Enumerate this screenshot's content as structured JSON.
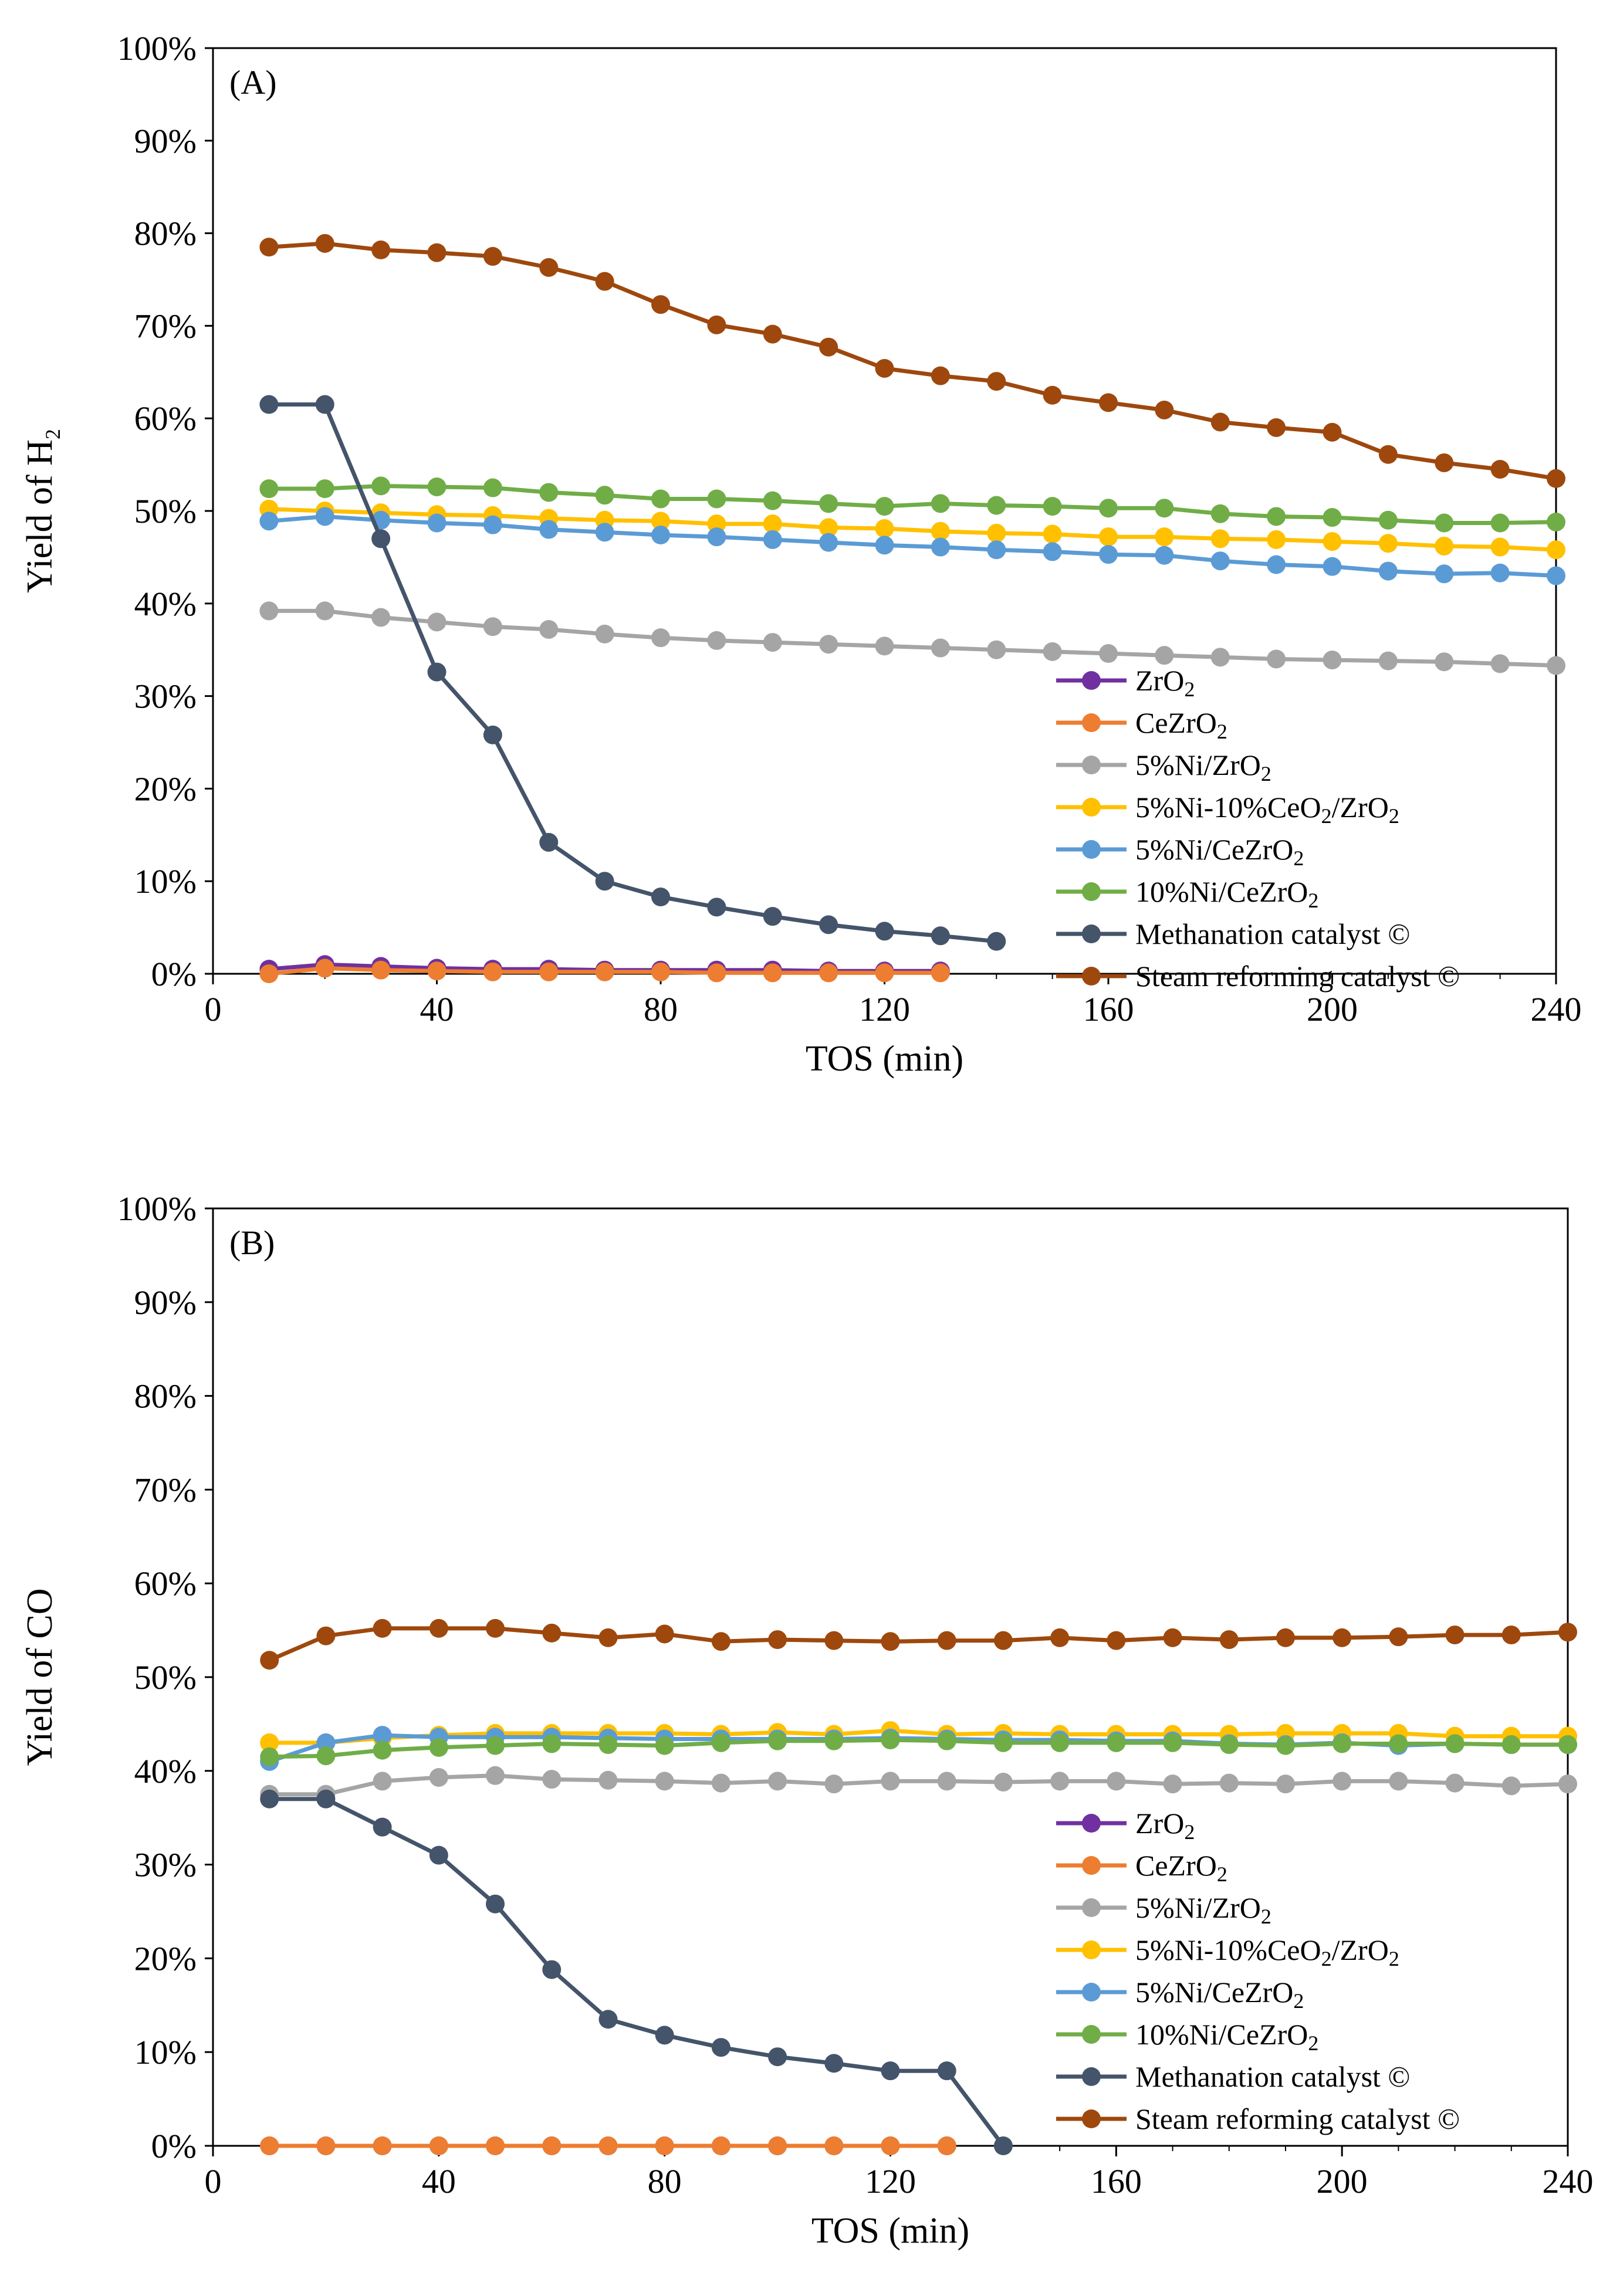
{
  "chart_data": [
    {
      "type": "line",
      "panel_label": "(A)",
      "xlabel": "TOS (min)",
      "ylabel": "Yield of H",
      "ylabel_sub": "2",
      "xlim": [
        0,
        240
      ],
      "ylim": [
        0,
        100
      ],
      "x_ticks": [
        "0",
        "40",
        "80",
        "120",
        "160",
        "200",
        "240"
      ],
      "y_ticks": [
        "0%",
        "10%",
        "20%",
        "30%",
        "40%",
        "50%",
        "60%",
        "70%",
        "80%",
        "90%",
        "100%"
      ],
      "grid": false,
      "legend_position": "bottom-right",
      "series": [
        {
          "name": "ZrO",
          "sub1": "2",
          "rest": "",
          "color": "#7030A0",
          "x": [
            10,
            20,
            30,
            40,
            50,
            60,
            70,
            80,
            90,
            100,
            110,
            120,
            130
          ],
          "y": [
            0.5,
            1.0,
            0.8,
            0.6,
            0.5,
            0.5,
            0.4,
            0.4,
            0.4,
            0.4,
            0.3,
            0.3,
            0.3
          ]
        },
        {
          "name": "CeZrO",
          "sub1": "2",
          "rest": "",
          "color": "#ED7D31",
          "x": [
            10,
            20,
            30,
            40,
            50,
            60,
            70,
            80,
            90,
            100,
            110,
            120,
            130
          ],
          "y": [
            0.0,
            0.6,
            0.4,
            0.3,
            0.2,
            0.2,
            0.2,
            0.2,
            0.1,
            0.1,
            0.1,
            0.1,
            0.1
          ]
        },
        {
          "name": "5%Ni/ZrO",
          "sub1": "2",
          "rest": "",
          "color": "#A5A5A5",
          "x": [
            10,
            20,
            30,
            40,
            50,
            60,
            70,
            80,
            90,
            100,
            110,
            120,
            130,
            140,
            150,
            160,
            170,
            180,
            190,
            200,
            210,
            220,
            230,
            240
          ],
          "y": [
            39.2,
            39.2,
            38.5,
            38.0,
            37.5,
            37.2,
            36.7,
            36.3,
            36.0,
            35.8,
            35.6,
            35.4,
            35.2,
            35.0,
            34.8,
            34.6,
            34.4,
            34.2,
            34.0,
            33.9,
            33.8,
            33.7,
            33.5,
            33.3
          ]
        },
        {
          "name": "5%Ni-10%CeO",
          "sub1": "2",
          "rest": "/ZrO",
          "sub2": "2",
          "color": "#FFC000",
          "x": [
            10,
            20,
            30,
            40,
            50,
            60,
            70,
            80,
            90,
            100,
            110,
            120,
            130,
            140,
            150,
            160,
            170,
            180,
            190,
            200,
            210,
            220,
            230,
            240
          ],
          "y": [
            50.2,
            50.0,
            49.8,
            49.6,
            49.5,
            49.2,
            49.0,
            48.9,
            48.6,
            48.6,
            48.2,
            48.1,
            47.8,
            47.6,
            47.5,
            47.2,
            47.2,
            47.0,
            46.9,
            46.7,
            46.5,
            46.2,
            46.1,
            45.8
          ]
        },
        {
          "name": "5%Ni/CeZrO",
          "sub1": "2",
          "rest": "",
          "color": "#5B9BD5",
          "x": [
            10,
            20,
            30,
            40,
            50,
            60,
            70,
            80,
            90,
            100,
            110,
            120,
            130,
            140,
            150,
            160,
            170,
            180,
            190,
            200,
            210,
            220,
            230,
            240
          ],
          "y": [
            48.9,
            49.4,
            49.0,
            48.7,
            48.5,
            48.0,
            47.7,
            47.4,
            47.2,
            46.9,
            46.6,
            46.3,
            46.1,
            45.8,
            45.6,
            45.3,
            45.2,
            44.6,
            44.2,
            44.0,
            43.5,
            43.2,
            43.3,
            43.0
          ]
        },
        {
          "name": "10%Ni/CeZrO",
          "sub1": "2",
          "rest": "",
          "color": "#70AD47",
          "x": [
            10,
            20,
            30,
            40,
            50,
            60,
            70,
            80,
            90,
            100,
            110,
            120,
            130,
            140,
            150,
            160,
            170,
            180,
            190,
            200,
            210,
            220,
            230,
            240
          ],
          "y": [
            52.4,
            52.4,
            52.7,
            52.6,
            52.5,
            52.0,
            51.7,
            51.3,
            51.3,
            51.1,
            50.8,
            50.5,
            50.8,
            50.6,
            50.5,
            50.3,
            50.3,
            49.7,
            49.4,
            49.3,
            49.0,
            48.7,
            48.7,
            48.8
          ]
        },
        {
          "name": "Methanation catalyst ©",
          "sub1": "",
          "rest": "",
          "color": "#44546A",
          "x": [
            10,
            20,
            30,
            40,
            50,
            60,
            70,
            80,
            90,
            100,
            110,
            120,
            130,
            140
          ],
          "y": [
            61.5,
            61.5,
            47.0,
            32.6,
            25.8,
            14.2,
            10.0,
            8.3,
            7.2,
            6.2,
            5.3,
            4.6,
            4.1,
            3.5
          ]
        },
        {
          "name": "Steam reforming catalyst ©",
          "sub1": "",
          "rest": "",
          "color": "#9E480E",
          "x": [
            10,
            20,
            30,
            40,
            50,
            60,
            70,
            80,
            90,
            100,
            110,
            120,
            130,
            140,
            150,
            160,
            170,
            180,
            190,
            200,
            210,
            220,
            230,
            240
          ],
          "y": [
            78.5,
            78.9,
            78.2,
            77.9,
            77.5,
            76.3,
            74.8,
            72.3,
            70.1,
            69.1,
            67.7,
            65.4,
            64.6,
            64.0,
            62.5,
            61.7,
            60.9,
            59.6,
            59.0,
            58.5,
            56.1,
            55.2,
            54.5,
            53.5
          ]
        }
      ]
    },
    {
      "type": "line",
      "panel_label": "(B)",
      "xlabel": "TOS (min)",
      "ylabel": "Yield of CO",
      "ylabel_sub": "",
      "xlim": [
        0,
        240
      ],
      "ylim": [
        0,
        100
      ],
      "x_ticks": [
        "0",
        "40",
        "80",
        "120",
        "160",
        "200",
        "240"
      ],
      "y_ticks": [
        "0%",
        "10%",
        "20%",
        "30%",
        "40%",
        "50%",
        "60%",
        "70%",
        "80%",
        "90%",
        "100%"
      ],
      "grid": false,
      "legend_position": "bottom-right",
      "series": [
        {
          "name": "ZrO",
          "sub1": "2",
          "rest": "",
          "color": "#7030A0",
          "x": [
            10,
            20,
            30,
            40,
            50,
            60,
            70,
            80,
            90,
            100,
            110,
            120,
            130
          ],
          "y": [
            0,
            0,
            0,
            0,
            0,
            0,
            0,
            0,
            0,
            0,
            0,
            0,
            0
          ]
        },
        {
          "name": "CeZrO",
          "sub1": "2",
          "rest": "",
          "color": "#ED7D31",
          "x": [
            10,
            20,
            30,
            40,
            50,
            60,
            70,
            80,
            90,
            100,
            110,
            120,
            130
          ],
          "y": [
            0,
            0,
            0,
            0,
            0,
            0,
            0,
            0,
            0,
            0,
            0,
            0,
            0
          ]
        },
        {
          "name": "5%Ni/ZrO",
          "sub1": "2",
          "rest": "",
          "color": "#A5A5A5",
          "x": [
            10,
            20,
            30,
            40,
            50,
            60,
            70,
            80,
            90,
            100,
            110,
            120,
            130,
            140,
            150,
            160,
            170,
            180,
            190,
            200,
            210,
            220,
            230,
            240
          ],
          "y": [
            37.5,
            37.5,
            38.9,
            39.3,
            39.5,
            39.1,
            39.0,
            38.9,
            38.7,
            38.9,
            38.6,
            38.9,
            38.9,
            38.8,
            38.9,
            38.9,
            38.6,
            38.7,
            38.6,
            38.9,
            38.9,
            38.7,
            38.4,
            38.6
          ]
        },
        {
          "name": "5%Ni-10%CeO",
          "sub1": "2",
          "rest": "/ZrO",
          "sub2": "2",
          "color": "#FFC000",
          "x": [
            10,
            20,
            30,
            40,
            50,
            60,
            70,
            80,
            90,
            100,
            110,
            120,
            130,
            140,
            150,
            160,
            170,
            180,
            190,
            200,
            210,
            220,
            230,
            240
          ],
          "y": [
            43.0,
            43.0,
            43.5,
            43.8,
            44.0,
            44.0,
            44.0,
            44.0,
            43.9,
            44.1,
            43.9,
            44.3,
            43.9,
            44.0,
            43.9,
            43.9,
            43.9,
            43.9,
            44.0,
            44.0,
            44.0,
            43.7,
            43.7,
            43.7
          ]
        },
        {
          "name": "5%Ni/CeZrO",
          "sub1": "2",
          "rest": "",
          "color": "#5B9BD5",
          "x": [
            10,
            20,
            30,
            40,
            50,
            60,
            70,
            80,
            90,
            100,
            110,
            120,
            130,
            140,
            150,
            160,
            170,
            180,
            190,
            200,
            210,
            220,
            230,
            240
          ],
          "y": [
            41.0,
            43.0,
            43.8,
            43.6,
            43.6,
            43.6,
            43.5,
            43.4,
            43.4,
            43.4,
            43.4,
            43.5,
            43.4,
            43.3,
            43.3,
            43.2,
            43.2,
            42.9,
            42.8,
            43.0,
            42.7,
            42.9,
            42.8,
            42.8
          ]
        },
        {
          "name": "10%Ni/CeZrO",
          "sub1": "2",
          "rest": "",
          "color": "#70AD47",
          "x": [
            10,
            20,
            30,
            40,
            50,
            60,
            70,
            80,
            90,
            100,
            110,
            120,
            130,
            140,
            150,
            160,
            170,
            180,
            190,
            200,
            210,
            220,
            230,
            240
          ],
          "y": [
            41.5,
            41.6,
            42.2,
            42.5,
            42.7,
            42.9,
            42.8,
            42.7,
            43.0,
            43.2,
            43.2,
            43.3,
            43.2,
            43.0,
            43.0,
            43.0,
            43.0,
            42.8,
            42.7,
            42.9,
            42.9,
            42.9,
            42.8,
            42.8
          ]
        },
        {
          "name": "Methanation catalyst ©",
          "sub1": "",
          "rest": "",
          "color": "#44546A",
          "x": [
            10,
            20,
            30,
            40,
            50,
            60,
            70,
            80,
            90,
            100,
            110,
            120,
            130,
            140
          ],
          "y": [
            37.0,
            37.0,
            34.0,
            31.0,
            25.8,
            18.8,
            13.5,
            11.8,
            10.5,
            9.5,
            8.8,
            8.0,
            8.0,
            0.0
          ]
        },
        {
          "name": "Steam reforming catalyst ©",
          "sub1": "",
          "rest": "",
          "color": "#9E480E",
          "x": [
            10,
            20,
            30,
            40,
            50,
            60,
            70,
            80,
            90,
            100,
            110,
            120,
            130,
            140,
            150,
            160,
            170,
            180,
            190,
            200,
            210,
            220,
            230,
            240
          ],
          "y": [
            51.8,
            54.4,
            55.2,
            55.2,
            55.2,
            54.7,
            54.2,
            54.6,
            53.8,
            54.0,
            53.9,
            53.8,
            53.9,
            53.9,
            54.2,
            53.9,
            54.2,
            54.0,
            54.2,
            54.2,
            54.3,
            54.5,
            54.5,
            54.8
          ]
        }
      ]
    }
  ]
}
